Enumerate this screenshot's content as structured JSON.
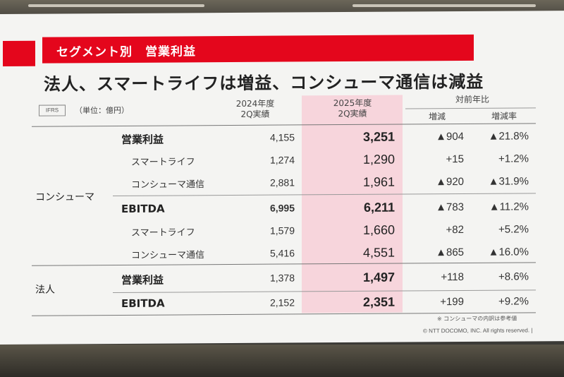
{
  "slide": {
    "section_title": "セグメント別　営業利益",
    "headline": "法人、スマートライフは増益、コンシューマ通信は減益",
    "ifrs_badge": "IFRS",
    "unit": "（単位：億円）"
  },
  "table": {
    "headers": {
      "fy2024": "2024年度\n2Q実績",
      "fy2025": "2025年度\n2Q実績",
      "yoy": "対前年比",
      "change": "増減",
      "change_rate": "増減率"
    },
    "segments": {
      "consumer": "コンシューマ",
      "corporate": "法人"
    },
    "rows": [
      {
        "label": "営業利益",
        "fy2024": "4,155",
        "fy2025": "3,251",
        "change": "▲904",
        "rate": "▲21.8%"
      },
      {
        "label": "スマートライフ",
        "fy2024": "1,274",
        "fy2025": "1,290",
        "change": "+15",
        "rate": "+1.2%"
      },
      {
        "label": "コンシューマ通信",
        "fy2024": "2,881",
        "fy2025": "1,961",
        "change": "▲920",
        "rate": "▲31.9%"
      },
      {
        "label": "EBITDA",
        "fy2024": "6,995",
        "fy2025": "6,211",
        "change": "▲783",
        "rate": "▲11.2%"
      },
      {
        "label": "スマートライフ",
        "fy2024": "1,579",
        "fy2025": "1,660",
        "change": "+82",
        "rate": "+5.2%"
      },
      {
        "label": "コンシューマ通信",
        "fy2024": "5,416",
        "fy2025": "4,551",
        "change": "▲865",
        "rate": "▲16.0%"
      },
      {
        "label": "営業利益",
        "fy2024": "1,378",
        "fy2025": "1,497",
        "change": "+118",
        "rate": "+8.6%"
      },
      {
        "label": "EBITDA",
        "fy2024": "2,152",
        "fy2025": "2,351",
        "change": "+199",
        "rate": "+9.2%"
      }
    ]
  },
  "footer": {
    "note": "※ コンシューマの内訳は参考値",
    "copyright": "© NTT DOCOMO, INC.  All rights reserved.   |"
  },
  "colors": {
    "brand_red": "#e4061c",
    "highlight_pink": "#f7d5dc"
  }
}
